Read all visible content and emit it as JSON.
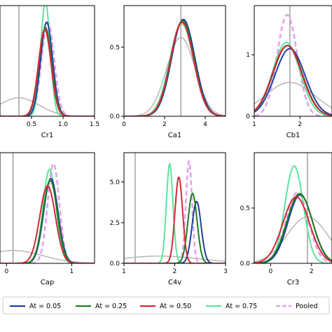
{
  "legend": {
    "items": [
      {
        "label": "At = 0.05",
        "color": "#1f3fa0",
        "dash": false
      },
      {
        "label": "At = 0.25",
        "color": "#1e7d1e",
        "dash": false
      },
      {
        "label": "At = 0.50",
        "color": "#d62738",
        "dash": false
      },
      {
        "label": "At = 0.75",
        "color": "#5fe39a",
        "dash": false
      },
      {
        "label": "Pooled",
        "color": "#e5a3ec",
        "dash": true
      }
    ]
  },
  "prior_color": "#b3b3b3",
  "ref_color": "#8a8a8a",
  "chart_data": [
    {
      "type": "line",
      "xlabel": "Cr1",
      "xlim": [
        0,
        1.5
      ],
      "ylim": [
        0,
        3.0
      ],
      "xticks": [
        {
          "v": 0.5,
          "l": "0.5"
        },
        {
          "v": 1.0,
          "l": "1.0"
        },
        {
          "v": 1.5,
          "l": "1.5"
        }
      ],
      "yticks": [],
      "ref_x": 0.3,
      "prior": {
        "mean": 0.3,
        "sd": 0.32,
        "peak": 0.5
      },
      "series": [
        {
          "mean": 0.74,
          "sd": 0.095,
          "peak": 2.55
        },
        {
          "mean": 0.72,
          "sd": 0.1,
          "peak": 2.4
        },
        {
          "mean": 0.71,
          "sd": 0.1,
          "peak": 2.35
        },
        {
          "mean": 0.72,
          "sd": 0.075,
          "peak": 3.1
        },
        {
          "mean": 0.76,
          "sd": 0.1,
          "peak": 2.55
        }
      ]
    },
    {
      "type": "line",
      "xlabel": "Ca1",
      "xlim": [
        0,
        5
      ],
      "ylim": [
        0,
        0.8
      ],
      "xticks": [
        {
          "v": 0,
          "l": "0"
        },
        {
          "v": 2,
          "l": "2"
        },
        {
          "v": 4,
          "l": "4"
        }
      ],
      "yticks": [
        {
          "v": 0.0,
          "l": "0.0"
        },
        {
          "v": 0.5,
          "l": "0.5"
        }
      ],
      "ref_x": 2.8,
      "prior": {
        "mean": 2.8,
        "sd": 0.7,
        "peak": 0.57
      },
      "series": [
        {
          "mean": 2.92,
          "sd": 0.57,
          "peak": 0.7
        },
        {
          "mean": 2.88,
          "sd": 0.57,
          "peak": 0.69
        },
        {
          "mean": 2.86,
          "sd": 0.57,
          "peak": 0.68
        },
        {
          "mean": 2.84,
          "sd": 0.59,
          "peak": 0.67
        },
        {
          "mean": 2.85,
          "sd": 0.58,
          "peak": 0.67
        }
      ]
    },
    {
      "type": "line",
      "xlabel": "Cb1",
      "xlim": [
        1,
        2.7
      ],
      "ylim": [
        0,
        1.8
      ],
      "xticks": [
        {
          "v": 1,
          "l": "1"
        },
        {
          "v": 2,
          "l": "2"
        }
      ],
      "yticks": [
        {
          "v": 0,
          "l": "0"
        },
        {
          "v": 1,
          "l": "1"
        }
      ],
      "ref_x": 1.78,
      "prior": {
        "mean": 1.78,
        "sd": 0.55,
        "peak": 0.55
      },
      "series": [
        {
          "mean": 1.78,
          "sd": 0.33,
          "peak": 1.1
        },
        {
          "mean": 1.73,
          "sd": 0.32,
          "peak": 1.15
        },
        {
          "mean": 1.72,
          "sd": 0.32,
          "peak": 1.15
        },
        {
          "mean": 1.7,
          "sd": 0.3,
          "peak": 1.2
        },
        {
          "mean": 1.72,
          "sd": 0.22,
          "peak": 1.65
        }
      ]
    },
    {
      "type": "line",
      "xlabel": "Cap",
      "xlim": [
        -0.1,
        1.35
      ],
      "ylim": [
        0,
        3.0
      ],
      "xticks": [
        {
          "v": 0,
          "l": "0"
        },
        {
          "v": 1,
          "l": "1"
        }
      ],
      "yticks": [],
      "ref_x": 0.1,
      "prior": {
        "mean": 0.1,
        "sd": 0.45,
        "peak": 0.35
      },
      "series": [
        {
          "mean": 0.68,
          "sd": 0.11,
          "peak": 2.3
        },
        {
          "mean": 0.67,
          "sd": 0.11,
          "peak": 2.25
        },
        {
          "mean": 0.63,
          "sd": 0.12,
          "peak": 2.1
        },
        {
          "mean": 0.66,
          "sd": 0.1,
          "peak": 2.55
        },
        {
          "mean": 0.72,
          "sd": 0.09,
          "peak": 2.7
        }
      ]
    },
    {
      "type": "line",
      "xlabel": "C4v",
      "xlim": [
        1,
        3
      ],
      "ylim": [
        0,
        6.8
      ],
      "xticks": [
        {
          "v": 1,
          "l": "1"
        },
        {
          "v": 2,
          "l": "2"
        },
        {
          "v": 3,
          "l": "3"
        }
      ],
      "yticks": [
        {
          "v": 0.0,
          "l": "0.0"
        },
        {
          "v": 2.5,
          "l": "2.5"
        },
        {
          "v": 5.0,
          "l": "5.0"
        }
      ],
      "ref_x": 1.22,
      "prior": {
        "mean": 1.7,
        "sd": 0.8,
        "peak": 0.45
      },
      "series": [
        {
          "mean": 2.43,
          "sd": 0.09,
          "peak": 3.8
        },
        {
          "mean": 2.35,
          "sd": 0.09,
          "peak": 4.3
        },
        {
          "mean": 2.08,
          "sd": 0.075,
          "peak": 5.3
        },
        {
          "mean": 1.9,
          "sd": 0.065,
          "peak": 6.1
        },
        {
          "mean": 2.28,
          "sd": 0.06,
          "peak": 6.3
        }
      ]
    },
    {
      "type": "line",
      "xlabel": "Cr3",
      "xlim": [
        -0.8,
        3.0
      ],
      "ylim": [
        0,
        1.0
      ],
      "xticks": [
        {
          "v": 0,
          "l": "0"
        },
        {
          "v": 2,
          "l": "2"
        }
      ],
      "yticks": [
        {
          "v": 0.0,
          "l": "0.0"
        },
        {
          "v": 0.5,
          "l": "0.5"
        }
      ],
      "ref_x": 1.8,
      "prior": {
        "mean": 1.8,
        "sd": 1.0,
        "peak": 0.42
      },
      "series": [
        {
          "mean": 1.45,
          "sd": 0.6,
          "peak": 0.62
        },
        {
          "mean": 1.42,
          "sd": 0.62,
          "peak": 0.63
        },
        {
          "mean": 1.25,
          "sd": 0.65,
          "peak": 0.6
        },
        {
          "mean": 1.15,
          "sd": 0.45,
          "peak": 0.88
        },
        {
          "mean": 1.3,
          "sd": 0.55,
          "peak": 0.64
        }
      ]
    }
  ]
}
